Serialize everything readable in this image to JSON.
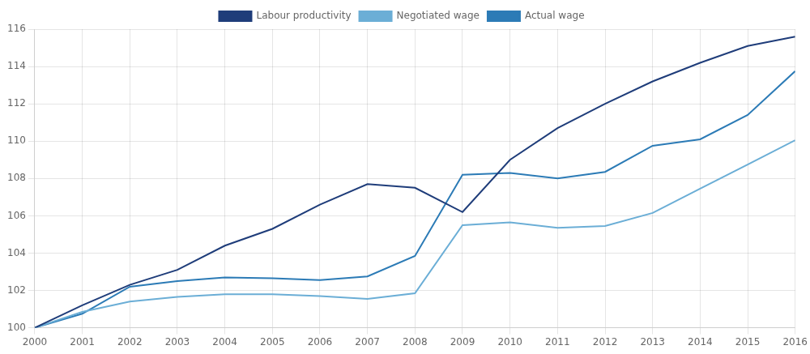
{
  "chart_data": {
    "type": "line",
    "x": [
      2000,
      2001,
      2002,
      2003,
      2004,
      2005,
      2006,
      2007,
      2008,
      2009,
      2010,
      2011,
      2012,
      2013,
      2014,
      2015,
      2016
    ],
    "series": [
      {
        "name": "Labour productivity",
        "color": "#1f3d7a",
        "values": [
          100.0,
          101.2,
          102.3,
          103.1,
          104.4,
          105.3,
          106.6,
          107.7,
          107.5,
          106.2,
          109.0,
          110.7,
          112.0,
          113.2,
          114.2,
          115.1,
          115.6
        ]
      },
      {
        "name": "Negotiated wage",
        "color": "#6baed6",
        "values": [
          100.0,
          100.85,
          101.4,
          101.65,
          101.8,
          101.8,
          101.7,
          101.55,
          101.85,
          105.5,
          105.65,
          105.35,
          105.45,
          106.15,
          107.45,
          108.75,
          110.05
        ]
      },
      {
        "name": "Actual wage",
        "color": "#2c7bb6",
        "values": [
          100.0,
          100.75,
          102.2,
          102.5,
          102.7,
          102.65,
          102.55,
          102.75,
          103.85,
          108.2,
          108.3,
          108.0,
          108.35,
          109.75,
          110.1,
          111.4,
          113.75
        ]
      }
    ],
    "xlim": [
      2000,
      2016
    ],
    "xticks": [
      2000,
      2001,
      2002,
      2003,
      2004,
      2005,
      2006,
      2007,
      2008,
      2009,
      2010,
      2011,
      2012,
      2013,
      2014,
      2015,
      2016
    ],
    "ylim": [
      100,
      116
    ],
    "yticks": [
      100,
      102,
      104,
      106,
      108,
      110,
      112,
      114,
      116
    ],
    "grid": true,
    "legend": "top"
  }
}
